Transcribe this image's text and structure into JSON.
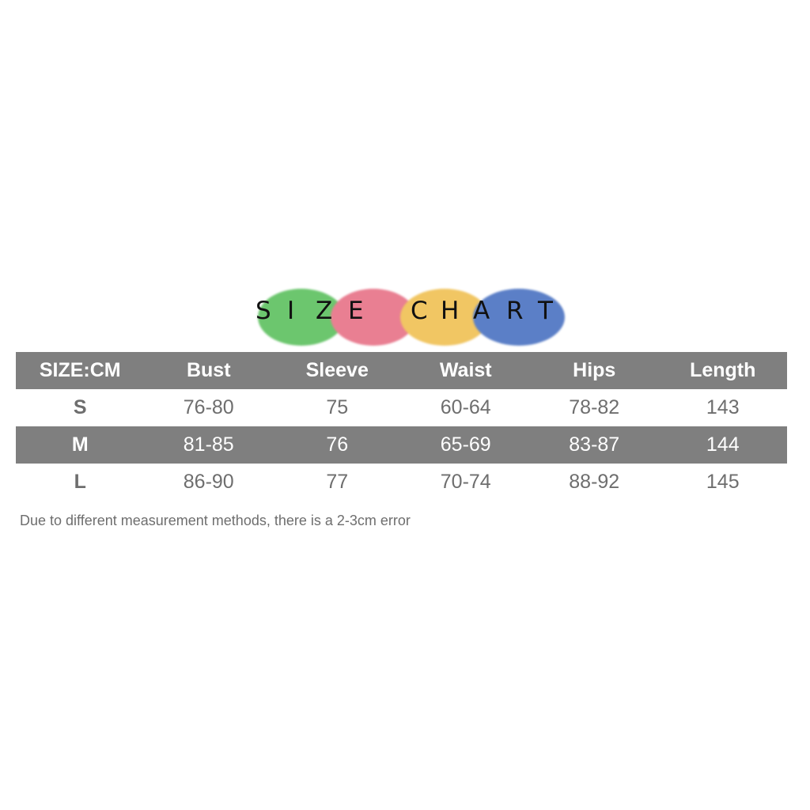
{
  "logo": {
    "text": "SIZE CHART",
    "letters": [
      "S",
      "I",
      "Z",
      "E",
      "C",
      "H",
      "A",
      "R",
      "T"
    ],
    "colors": [
      "#6cc66e",
      "#e97f92",
      "#f1c663",
      "#5b7fc7"
    ]
  },
  "table": {
    "headers": [
      "SIZE:CM",
      "Bust",
      "Sleeve",
      "Waist",
      "Hips",
      "Length"
    ],
    "rows": [
      [
        "S",
        "76-80",
        "75",
        "60-64",
        "78-82",
        "143"
      ],
      [
        "M",
        "81-85",
        "76",
        "65-69",
        "83-87",
        "144"
      ],
      [
        "L",
        "86-90",
        "77",
        "70-74",
        "88-92",
        "145"
      ]
    ],
    "header_color": "#7f7f7f"
  },
  "note": "Due to different measurement methods, there is a 2-3cm error"
}
